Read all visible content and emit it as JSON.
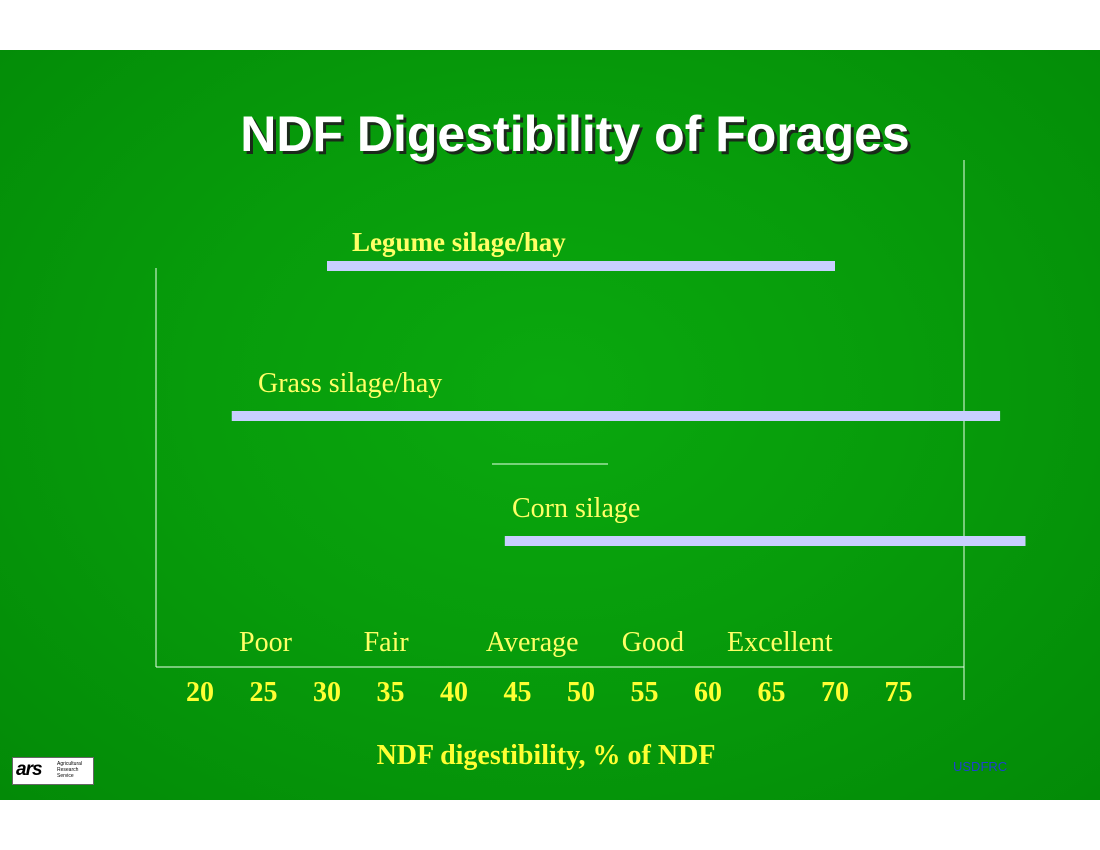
{
  "slide": {
    "title": "NDF Digestibility of Forages",
    "footer_credit": "USDFRC",
    "logo": {
      "mark": "ars",
      "lines": [
        "Agricultural",
        "Research",
        "Service"
      ]
    }
  },
  "chart_data": {
    "type": "range-bar",
    "xlabel": "NDF digestibility, % of NDF",
    "x_ticks": [
      20,
      25,
      30,
      35,
      40,
      45,
      50,
      55,
      60,
      65,
      70,
      75
    ],
    "xlim": [
      17.5,
      77.5
    ],
    "series": [
      {
        "name": "Legume silage/hay",
        "start": 30,
        "end": 70,
        "label_bold": true
      },
      {
        "name": "Grass silage/hay",
        "start": 22.5,
        "end": 83,
        "label_bold": false
      },
      {
        "name": "Corn silage",
        "start": 44,
        "end": 85,
        "label_bold": false
      }
    ],
    "quality_categories": [
      {
        "label": "Poor",
        "at": 25
      },
      {
        "label": "Fair",
        "at": 34.5
      },
      {
        "label": "Average",
        "at": 46
      },
      {
        "label": "Good",
        "at": 55.5
      },
      {
        "label": "Excellent",
        "at": 65.5
      }
    ],
    "colors": {
      "bar": "#c8cfff",
      "label": "#ffff66",
      "tick": "#ffff33",
      "axis": "#e8ffe8"
    }
  }
}
